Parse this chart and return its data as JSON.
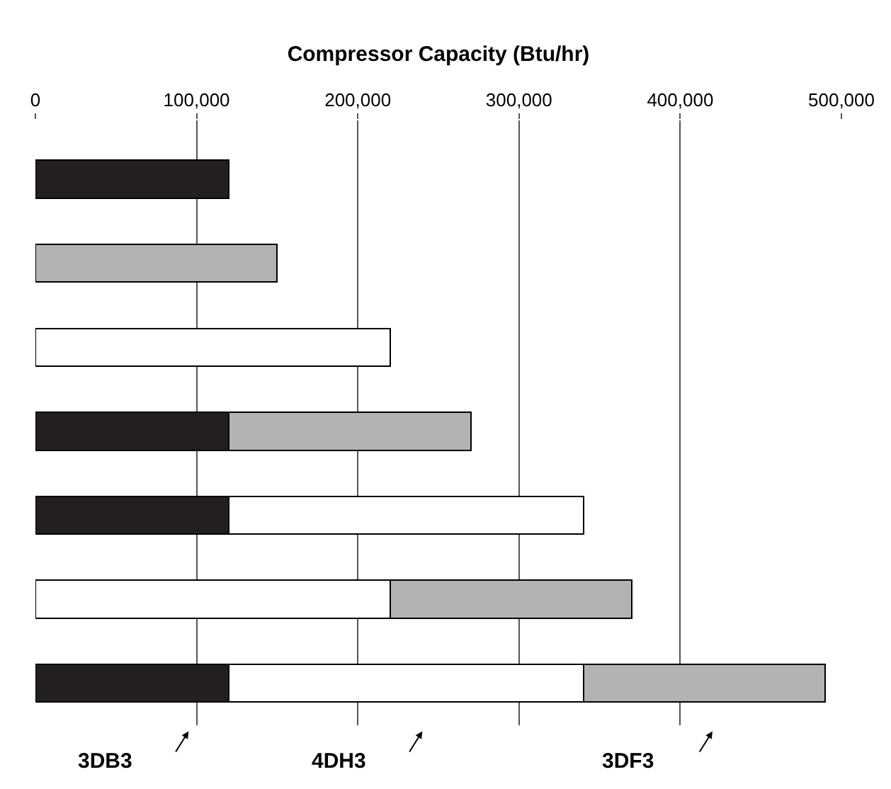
{
  "chart_data": {
    "type": "bar",
    "orientation": "horizontal",
    "stacked": true,
    "xlabel": "Compressor Capacity (Btu/hr)",
    "categories": [
      null,
      null,
      null,
      null,
      null,
      null,
      null
    ],
    "series": [
      {
        "color": "#231f20",
        "values": [
          120000,
          null,
          null,
          120000,
          120000,
          null,
          120000
        ]
      },
      {
        "color": "#ffffff",
        "values": [
          null,
          null,
          220000,
          null,
          220000,
          220000,
          220000
        ]
      },
      {
        "color": "#b3b3b3",
        "values": [
          null,
          150000,
          null,
          150000,
          null,
          150000,
          150000
        ]
      }
    ],
    "xlim": [
      0,
      500000
    ],
    "xticks": [
      {
        "value": 0,
        "label": "0"
      },
      {
        "value": 100000,
        "label": "100,000"
      },
      {
        "value": 200000,
        "label": "200,000"
      },
      {
        "value": 300000,
        "label": "300,000"
      },
      {
        "value": 400000,
        "label": "400,000"
      },
      {
        "value": 500000,
        "label": "500,000"
      }
    ],
    "grid": "x",
    "tick_labels": "x",
    "annotations": [
      "3DB3",
      "4DH3",
      "3DF3"
    ]
  }
}
